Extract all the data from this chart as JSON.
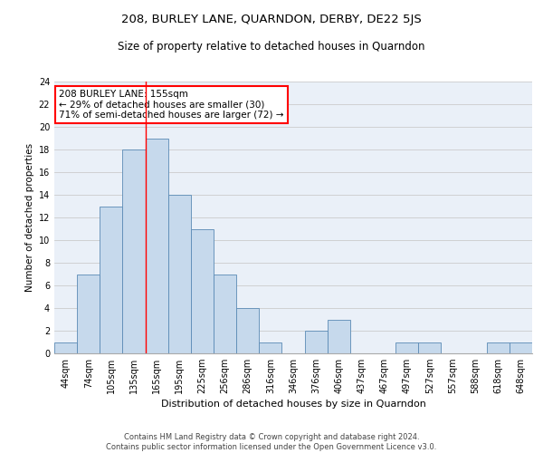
{
  "title": "208, BURLEY LANE, QUARNDON, DERBY, DE22 5JS",
  "subtitle": "Size of property relative to detached houses in Quarndon",
  "xlabel": "Distribution of detached houses by size in Quarndon",
  "ylabel": "Number of detached properties",
  "bin_labels": [
    "44sqm",
    "74sqm",
    "105sqm",
    "135sqm",
    "165sqm",
    "195sqm",
    "225sqm",
    "256sqm",
    "286sqm",
    "316sqm",
    "346sqm",
    "376sqm",
    "406sqm",
    "437sqm",
    "467sqm",
    "497sqm",
    "527sqm",
    "557sqm",
    "588sqm",
    "618sqm",
    "648sqm"
  ],
  "bar_values": [
    1,
    7,
    13,
    18,
    19,
    14,
    11,
    7,
    4,
    1,
    0,
    2,
    3,
    0,
    0,
    1,
    1,
    0,
    0,
    1,
    1
  ],
  "bar_color": "#c6d9ec",
  "bar_edge_color": "#5a8ab5",
  "annotation_text": "208 BURLEY LANE: 155sqm\n← 29% of detached houses are smaller (30)\n71% of semi-detached houses are larger (72) →",
  "annotation_box_color": "white",
  "annotation_box_edge_color": "red",
  "vline_x": 3.5,
  "vline_color": "red",
  "ylim": [
    0,
    24
  ],
  "yticks": [
    0,
    2,
    4,
    6,
    8,
    10,
    12,
    14,
    16,
    18,
    20,
    22,
    24
  ],
  "grid_color": "#cccccc",
  "bg_color": "#eaf0f8",
  "footer_line1": "Contains HM Land Registry data © Crown copyright and database right 2024.",
  "footer_line2": "Contains public sector information licensed under the Open Government Licence v3.0.",
  "title_fontsize": 9.5,
  "subtitle_fontsize": 8.5,
  "annotation_fontsize": 7.5,
  "ylabel_fontsize": 7.5,
  "xlabel_fontsize": 8,
  "tick_fontsize": 7,
  "footer_fontsize": 6
}
